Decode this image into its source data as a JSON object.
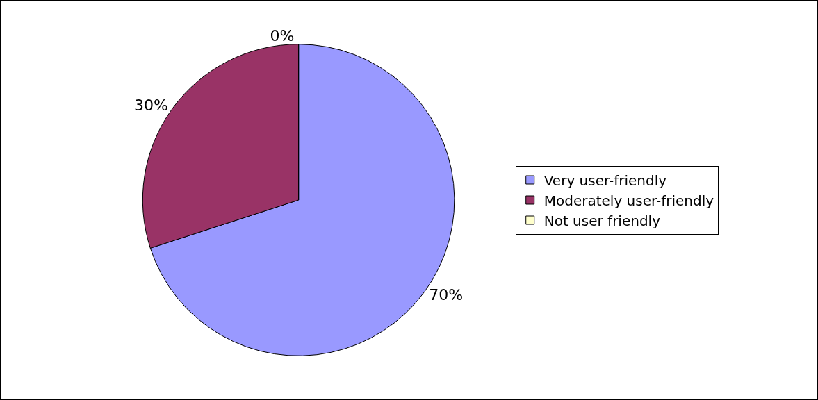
{
  "chart_data": {
    "type": "pie",
    "categories": [
      "Very user-friendly",
      "Moderately user-friendly",
      "Not user friendly"
    ],
    "values": [
      70,
      30,
      0
    ],
    "colors": [
      "#9999ff",
      "#993366",
      "#ffffcc"
    ],
    "value_labels": [
      "70%",
      "30%",
      "0%"
    ],
    "legend": "right"
  }
}
